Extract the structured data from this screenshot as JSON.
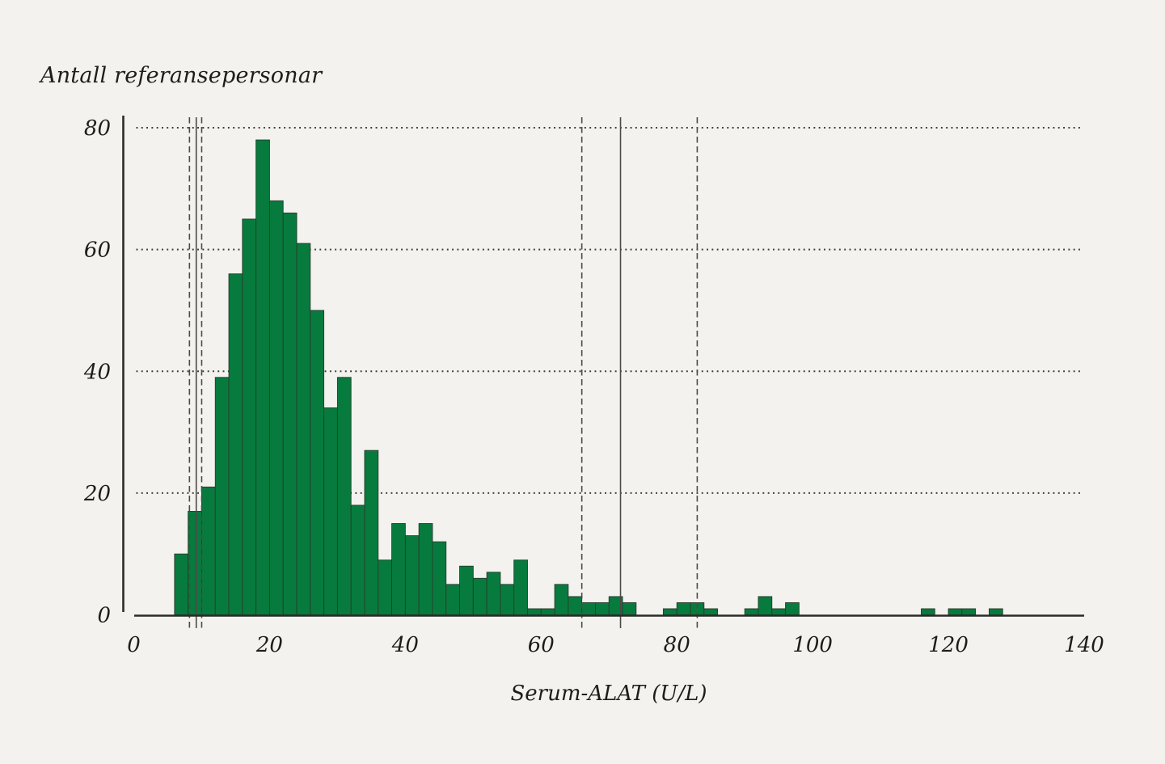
{
  "page": {
    "background_color": "#f3f2ef",
    "text_color": "#1d1d1b"
  },
  "chart_data": {
    "type": "bar",
    "subtype": "histogram",
    "title": "",
    "ylabel": "Antall referansepersonar",
    "xlabel": "Serum-ALAT (U/L)",
    "bar_color": "#077b3d",
    "bar_edge_color": "#2a3b2e",
    "axis_color": "#2b2b28",
    "gridline_color": "#3b3b38",
    "reference_line_color": "#4a4a47",
    "xlim": [
      0,
      140
    ],
    "ylim": [
      0,
      80
    ],
    "x_ticks": [
      0,
      20,
      40,
      60,
      80,
      100,
      120,
      140
    ],
    "y_ticks": [
      0,
      20,
      40,
      60,
      80
    ],
    "grid": "horizontal dotted lines at y ticks 20/40/60/80",
    "legend": "none",
    "bin_width": 2,
    "bins": [
      {
        "x0": 6,
        "count": 10
      },
      {
        "x0": 8,
        "count": 17
      },
      {
        "x0": 10,
        "count": 21
      },
      {
        "x0": 12,
        "count": 39
      },
      {
        "x0": 14,
        "count": 56
      },
      {
        "x0": 16,
        "count": 65
      },
      {
        "x0": 18,
        "count": 78
      },
      {
        "x0": 20,
        "count": 68
      },
      {
        "x0": 22,
        "count": 66
      },
      {
        "x0": 24,
        "count": 61
      },
      {
        "x0": 26,
        "count": 50
      },
      {
        "x0": 28,
        "count": 34
      },
      {
        "x0": 30,
        "count": 39
      },
      {
        "x0": 32,
        "count": 18
      },
      {
        "x0": 34,
        "count": 27
      },
      {
        "x0": 36,
        "count": 9
      },
      {
        "x0": 38,
        "count": 15
      },
      {
        "x0": 40,
        "count": 13
      },
      {
        "x0": 42,
        "count": 15
      },
      {
        "x0": 44,
        "count": 12
      },
      {
        "x0": 46,
        "count": 5
      },
      {
        "x0": 48,
        "count": 8
      },
      {
        "x0": 50,
        "count": 6
      },
      {
        "x0": 52,
        "count": 7
      },
      {
        "x0": 54,
        "count": 5
      },
      {
        "x0": 56,
        "count": 9
      },
      {
        "x0": 58,
        "count": 1
      },
      {
        "x0": 60,
        "count": 1
      },
      {
        "x0": 62,
        "count": 5
      },
      {
        "x0": 64,
        "count": 3
      },
      {
        "x0": 66,
        "count": 2
      },
      {
        "x0": 68,
        "count": 2
      },
      {
        "x0": 70,
        "count": 3
      },
      {
        "x0": 72,
        "count": 2
      },
      {
        "x0": 78,
        "count": 1
      },
      {
        "x0": 80,
        "count": 2
      },
      {
        "x0": 82,
        "count": 2
      },
      {
        "x0": 84,
        "count": 1
      },
      {
        "x0": 90,
        "count": 1
      },
      {
        "x0": 92,
        "count": 3
      },
      {
        "x0": 94,
        "count": 1
      },
      {
        "x0": 96,
        "count": 2
      },
      {
        "x0": 116,
        "count": 1
      },
      {
        "x0": 120,
        "count": 1
      },
      {
        "x0": 122,
        "count": 1
      },
      {
        "x0": 126,
        "count": 1
      }
    ],
    "reference_lines": [
      {
        "x": 8.2,
        "style": "dashed",
        "group": "lower-limit-ci"
      },
      {
        "x": 9.2,
        "style": "solid",
        "group": "lower-limit"
      },
      {
        "x": 10.0,
        "style": "dashed",
        "group": "lower-limit-ci"
      },
      {
        "x": 66.0,
        "style": "dashed",
        "group": "upper-limit-ci"
      },
      {
        "x": 71.7,
        "style": "solid",
        "group": "upper-limit"
      },
      {
        "x": 83.0,
        "style": "dashed",
        "group": "upper-limit-ci"
      }
    ]
  }
}
